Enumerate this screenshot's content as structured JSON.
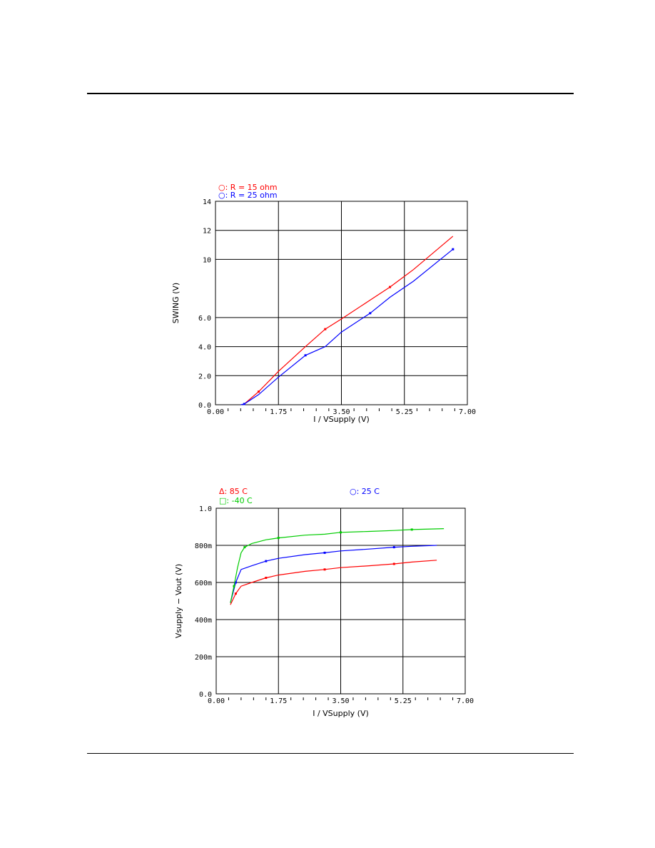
{
  "chart_data": [
    {
      "type": "line",
      "title": "",
      "xlabel": "I / VSupply (V)",
      "ylabel": "SWING (V)",
      "xlim": [
        0,
        7.0
      ],
      "ylim": [
        0,
        14
      ],
      "xticks": [
        0,
        1.75,
        3.5,
        5.25,
        7.0
      ],
      "xtick_labels": [
        "0.00",
        "1.75",
        "3.50",
        "5.25",
        "7.00"
      ],
      "yticks": [
        0,
        2,
        4,
        6,
        10,
        12,
        14
      ],
      "ytick_labels": [
        "0.0",
        "2.0",
        "4.0",
        "6.0",
        "10",
        "12",
        "14"
      ],
      "grid": true,
      "legend_position": "top-left",
      "series": [
        {
          "name": "R = 15 ohm",
          "legend_label": "○: R = 15 ohm",
          "color": "#ff0000",
          "x": [
            0.8,
            1.2,
            1.75,
            2.5,
            3.05,
            3.5,
            4.3,
            4.85,
            5.5,
            6.6
          ],
          "y": [
            0.05,
            0.9,
            2.3,
            4.0,
            5.2,
            5.9,
            7.2,
            8.1,
            9.3,
            11.6
          ]
        },
        {
          "name": "R = 25 ohm",
          "legend_label": "○: R = 25 ohm",
          "color": "#0000ff",
          "x": [
            0.7,
            0.8,
            1.2,
            1.75,
            2.5,
            3.05,
            3.5,
            4.3,
            4.85,
            5.5,
            6.6
          ],
          "y": [
            0.0,
            0.05,
            0.7,
            1.9,
            3.4,
            4.0,
            5.0,
            6.3,
            7.4,
            8.5,
            10.7
          ]
        }
      ]
    },
    {
      "type": "line",
      "title": "",
      "xlabel": "I / VSupply (V)",
      "ylabel": "Vsupply − Vout (V)",
      "xlim": [
        0,
        7.0
      ],
      "ylim": [
        0,
        1.0
      ],
      "xticks": [
        0,
        1.75,
        3.5,
        5.25,
        7.0
      ],
      "xtick_labels": [
        "0.00",
        "1.75",
        "3.50",
        "5.25",
        "7.00"
      ],
      "yticks": [
        0,
        0.2,
        0.4,
        0.6,
        0.8,
        1.0
      ],
      "ytick_labels": [
        "0.0",
        "200m",
        "400m",
        "600m",
        "800m",
        "1.0"
      ],
      "grid": true,
      "legend_position": "top",
      "series": [
        {
          "name": "85 C",
          "legend_label": "Δ: 85 C",
          "color": "#ff0000",
          "x": [
            0.4,
            0.55,
            0.7,
            1.0,
            1.4,
            1.75,
            2.5,
            3.05,
            3.5,
            4.3,
            5.0,
            5.5,
            6.2
          ],
          "y": [
            0.48,
            0.54,
            0.58,
            0.6,
            0.625,
            0.64,
            0.66,
            0.67,
            0.68,
            0.69,
            0.7,
            0.71,
            0.72
          ]
        },
        {
          "name": "25 C",
          "legend_label": "○: 25 C",
          "color": "#0000ff",
          "x": [
            0.4,
            0.55,
            0.7,
            1.0,
            1.4,
            1.75,
            2.5,
            3.05,
            3.5,
            4.3,
            5.0,
            5.5,
            6.2
          ],
          "y": [
            0.49,
            0.6,
            0.67,
            0.69,
            0.715,
            0.73,
            0.75,
            0.76,
            0.77,
            0.78,
            0.79,
            0.795,
            0.8
          ]
        },
        {
          "name": "-40 C",
          "legend_label": "□: -40 C",
          "color": "#00cc00",
          "x": [
            0.4,
            0.5,
            0.6,
            0.7,
            0.8,
            1.0,
            1.4,
            1.75,
            2.5,
            3.05,
            3.5,
            4.3,
            5.0,
            5.5,
            6.4
          ],
          "y": [
            0.49,
            0.58,
            0.68,
            0.76,
            0.79,
            0.81,
            0.83,
            0.84,
            0.855,
            0.86,
            0.87,
            0.875,
            0.88,
            0.885,
            0.89
          ]
        }
      ]
    }
  ]
}
